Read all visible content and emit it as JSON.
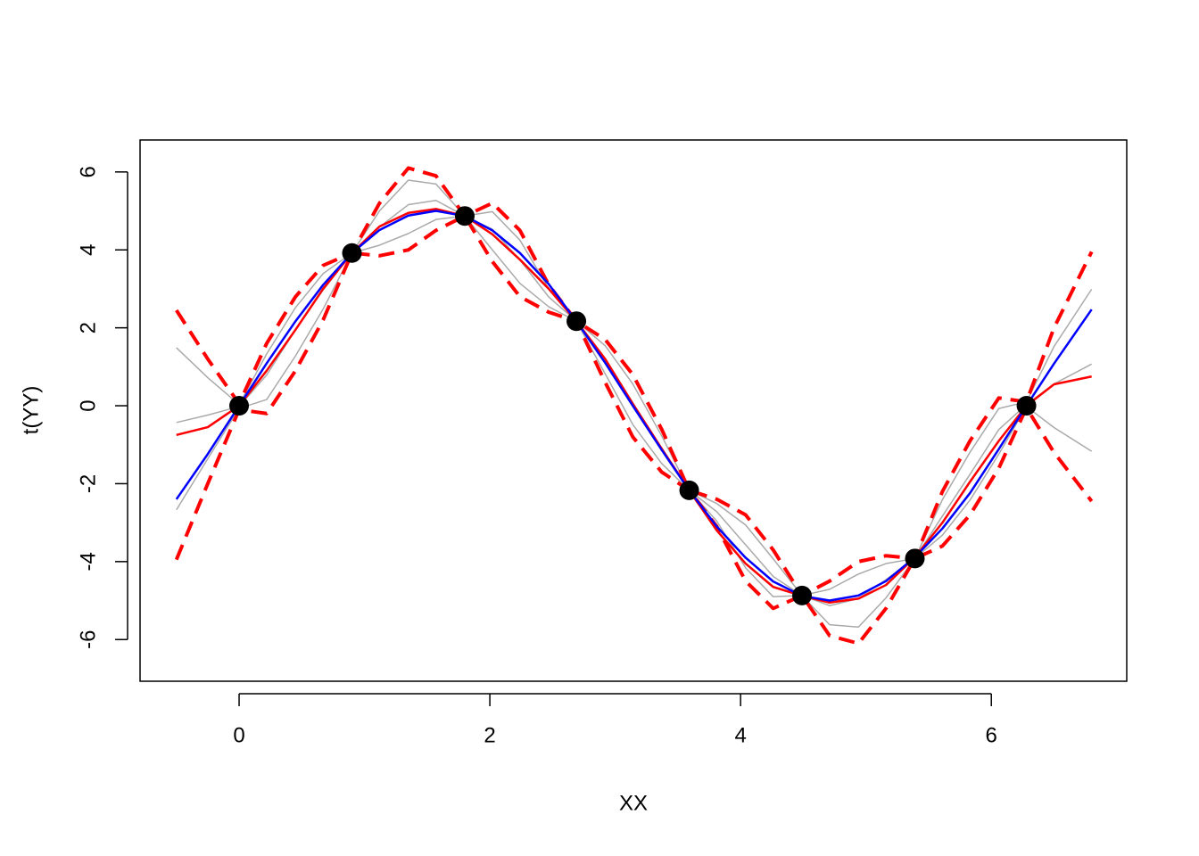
{
  "chart_data": {
    "type": "line",
    "xlabel": "XX",
    "ylabel": "t(YY)",
    "xlim": [
      -0.79,
      7.08
    ],
    "ylim": [
      -7.07,
      6.82
    ],
    "xticks": [
      0,
      2,
      4,
      6
    ],
    "yticks": [
      -6,
      -4,
      -2,
      0,
      2,
      4,
      6
    ],
    "x": [
      -0.5,
      -0.25,
      0,
      0.22,
      0.45,
      0.67,
      0.9,
      1.12,
      1.35,
      1.57,
      1.8,
      2.02,
      2.24,
      2.47,
      2.69,
      2.92,
      3.14,
      3.37,
      3.59,
      3.81,
      4.04,
      4.26,
      4.49,
      4.71,
      4.94,
      5.16,
      5.39,
      5.61,
      5.83,
      6.06,
      6.28,
      6.5,
      6.8
    ],
    "series": [
      {
        "color": "#aaaaaa",
        "width": 1.5,
        "dash": false,
        "values": [
          1.49,
          0.72,
          0.03,
          1.33,
          2.52,
          3.39,
          3.92,
          5.0,
          5.79,
          5.69,
          4.87,
          4.98,
          4.25,
          3.0,
          2.17,
          1.54,
          0.56,
          -0.77,
          -2.17,
          -2.51,
          -3.06,
          -3.93,
          -4.87,
          -4.71,
          -4.32,
          -4.05,
          -3.92,
          -2.41,
          -1.19,
          -0.07,
          0.1,
          1.52,
          2.99
        ]
      },
      {
        "color": "#aaaaaa",
        "width": 1.5,
        "dash": false,
        "values": [
          -2.67,
          -1.36,
          -0.07,
          0.16,
          1.28,
          2.48,
          3.92,
          4.12,
          4.42,
          4.78,
          4.87,
          4.0,
          3.14,
          2.54,
          2.17,
          0.82,
          -0.48,
          -1.48,
          -2.17,
          -2.96,
          -4.16,
          -4.9,
          -4.87,
          -5.62,
          -5.68,
          -4.93,
          -3.92,
          -3.32,
          -2.42,
          -1.24,
          -0.02,
          -0.56,
          -1.17
        ]
      },
      {
        "color": "#aaaaaa",
        "width": 1.5,
        "dash": false,
        "values": [
          -0.43,
          -0.24,
          -0.02,
          0.79,
          1.95,
          2.97,
          3.92,
          4.59,
          5.16,
          5.27,
          4.87,
          4.53,
          3.74,
          2.79,
          2.17,
          1.21,
          0.08,
          -1.1,
          -2.17,
          -2.72,
          -3.57,
          -4.38,
          -4.87,
          -5.13,
          -4.95,
          -4.46,
          -3.92,
          -2.83,
          -1.76,
          -0.61,
          0.03,
          0.56,
          1.07
        ]
      },
      {
        "color": "#ff0000",
        "width": 4,
        "dash": true,
        "values": [
          2.45,
          1.2,
          0.05,
          1.6,
          2.8,
          3.6,
          3.92,
          5.2,
          6.1,
          5.9,
          4.87,
          5.2,
          4.5,
          3.1,
          2.17,
          1.7,
          0.8,
          -0.6,
          -2.17,
          -2.4,
          -2.8,
          -3.7,
          -4.87,
          -4.5,
          -4.0,
          -3.85,
          -3.92,
          -2.2,
          -0.9,
          0.2,
          0.1,
          2.0,
          3.95
        ]
      },
      {
        "color": "#ff0000",
        "width": 4,
        "dash": true,
        "values": [
          -3.95,
          -2.0,
          -0.1,
          -0.2,
          0.9,
          2.2,
          3.92,
          3.85,
          4.0,
          4.5,
          4.87,
          3.7,
          2.8,
          2.4,
          2.17,
          0.6,
          -0.8,
          -1.7,
          -2.17,
          -3.1,
          -4.5,
          -5.2,
          -4.87,
          -5.9,
          -6.1,
          -5.2,
          -3.92,
          -3.6,
          -2.8,
          -1.6,
          -0.05,
          -1.2,
          -2.45
        ]
      },
      {
        "color": "#ff0000",
        "width": 2.5,
        "dash": false,
        "values": [
          -0.75,
          -0.55,
          0,
          0.9,
          1.95,
          3.0,
          3.92,
          4.6,
          4.95,
          5.05,
          4.87,
          4.4,
          3.75,
          3.0,
          2.17,
          1.2,
          0.05,
          -1.1,
          -2.17,
          -3.2,
          -4.05,
          -4.65,
          -4.88,
          -5.05,
          -4.95,
          -4.6,
          -3.89,
          -3.0,
          -1.95,
          -0.9,
          0,
          0.55,
          0.75
        ]
      },
      {
        "color": "#0000ff",
        "width": 2.5,
        "dash": false,
        "values": [
          -2.4,
          -1.24,
          0,
          1.09,
          2.17,
          3.1,
          3.92,
          4.51,
          4.88,
          5.0,
          4.87,
          4.5,
          3.92,
          3.12,
          2.17,
          1.1,
          0,
          -1.13,
          -2.17,
          -3.1,
          -3.9,
          -4.51,
          -4.88,
          -5.0,
          -4.87,
          -4.5,
          -3.89,
          -3.15,
          -2.24,
          -1.11,
          0,
          1.08,
          2.47
        ]
      }
    ],
    "points": {
      "color": "#000000",
      "x": [
        0,
        0.9,
        1.8,
        2.69,
        3.59,
        4.49,
        5.39,
        6.28
      ],
      "values": [
        0,
        3.92,
        4.87,
        2.17,
        -2.17,
        -4.87,
        -3.92,
        0
      ]
    }
  }
}
